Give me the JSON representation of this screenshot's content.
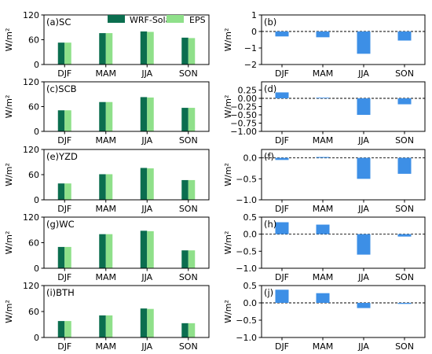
{
  "colors": {
    "wrf": "#0b6e4f",
    "eps": "#8fe08a",
    "diff": "#3d8fe6"
  },
  "legend": {
    "wrf": "WRF-Solar",
    "eps": "EPS"
  },
  "categories": [
    "DJF",
    "MAM",
    "JJA",
    "SON"
  ],
  "ylabel": "W/m²",
  "chart_data": [
    {
      "type": "bar",
      "title": "(a)SC",
      "categories": [
        "DJF",
        "MAM",
        "JJA",
        "SON"
      ],
      "ylim": [
        0,
        120
      ],
      "yticks": [
        "0",
        "60",
        "120"
      ],
      "series": [
        {
          "name": "WRF-Solar",
          "values": [
            53,
            76,
            80,
            65
          ]
        },
        {
          "name": "EPS",
          "values": [
            53,
            76,
            79,
            64
          ]
        }
      ]
    },
    {
      "type": "bar",
      "title": "(b)",
      "categories": [
        "DJF",
        "MAM",
        "JJA",
        "SON"
      ],
      "ylim": [
        -2,
        1
      ],
      "yticks": [
        "−2",
        "−1",
        "0",
        "1"
      ],
      "values": [
        -0.3,
        -0.35,
        -1.35,
        -0.55
      ]
    },
    {
      "type": "bar",
      "title": "(c)SCB",
      "categories": [
        "DJF",
        "MAM",
        "JJA",
        "SON"
      ],
      "ylim": [
        0,
        120
      ],
      "yticks": [
        "0",
        "60",
        "120"
      ],
      "series": [
        {
          "name": "WRF-Solar",
          "values": [
            51,
            71,
            83,
            57
          ]
        },
        {
          "name": "EPS",
          "values": [
            51,
            71,
            82,
            57
          ]
        }
      ]
    },
    {
      "type": "bar",
      "title": "(d)",
      "categories": [
        "DJF",
        "MAM",
        "JJA",
        "SON"
      ],
      "ylim": [
        -1,
        0.5
      ],
      "yticks": [
        "−1.00",
        "−0.75",
        "−0.50",
        "−0.25",
        "0.00",
        "0.25"
      ],
      "values": [
        0.18,
        0.02,
        -0.5,
        -0.18
      ]
    },
    {
      "type": "bar",
      "title": "(e)YZD",
      "categories": [
        "DJF",
        "MAM",
        "JJA",
        "SON"
      ],
      "ylim": [
        0,
        120
      ],
      "yticks": [
        "0",
        "60",
        "120"
      ],
      "series": [
        {
          "name": "WRF-Solar",
          "values": [
            39,
            61,
            76,
            47
          ]
        },
        {
          "name": "EPS",
          "values": [
            39,
            61,
            75,
            47
          ]
        }
      ]
    },
    {
      "type": "bar",
      "title": "(f)",
      "categories": [
        "DJF",
        "MAM",
        "JJA",
        "SON"
      ],
      "ylim": [
        -1,
        0.2
      ],
      "yticks": [
        "−1.0",
        "−0.5",
        "0.0"
      ],
      "values": [
        -0.05,
        0.02,
        -0.5,
        -0.38
      ]
    },
    {
      "type": "bar",
      "title": "(g)WC",
      "categories": [
        "DJF",
        "MAM",
        "JJA",
        "SON"
      ],
      "ylim": [
        0,
        120
      ],
      "yticks": [
        "0",
        "60",
        "120"
      ],
      "series": [
        {
          "name": "WRF-Solar",
          "values": [
            50,
            80,
            88,
            42
          ]
        },
        {
          "name": "EPS",
          "values": [
            50,
            80,
            87,
            42
          ]
        }
      ]
    },
    {
      "type": "bar",
      "title": "(h)",
      "categories": [
        "DJF",
        "MAM",
        "JJA",
        "SON"
      ],
      "ylim": [
        -1,
        0.5
      ],
      "yticks": [
        "−1.0",
        "−0.5",
        "0.0",
        "0.5"
      ],
      "values": [
        0.35,
        0.28,
        -0.6,
        -0.07
      ]
    },
    {
      "type": "bar",
      "title": "(i)BTH",
      "categories": [
        "DJF",
        "MAM",
        "JJA",
        "SON"
      ],
      "ylim": [
        0,
        120
      ],
      "yticks": [
        "0",
        "60",
        "120"
      ],
      "series": [
        {
          "name": "WRF-Solar",
          "values": [
            38,
            51,
            67,
            33
          ]
        },
        {
          "name": "EPS",
          "values": [
            38,
            51,
            66,
            33
          ]
        }
      ]
    },
    {
      "type": "bar",
      "title": "(j)",
      "categories": [
        "DJF",
        "MAM",
        "JJA",
        "SON"
      ],
      "ylim": [
        -1,
        0.5
      ],
      "yticks": [
        "−1.0",
        "−0.5",
        "0.0",
        "0.5"
      ],
      "values": [
        0.38,
        0.28,
        -0.15,
        -0.03
      ]
    }
  ]
}
